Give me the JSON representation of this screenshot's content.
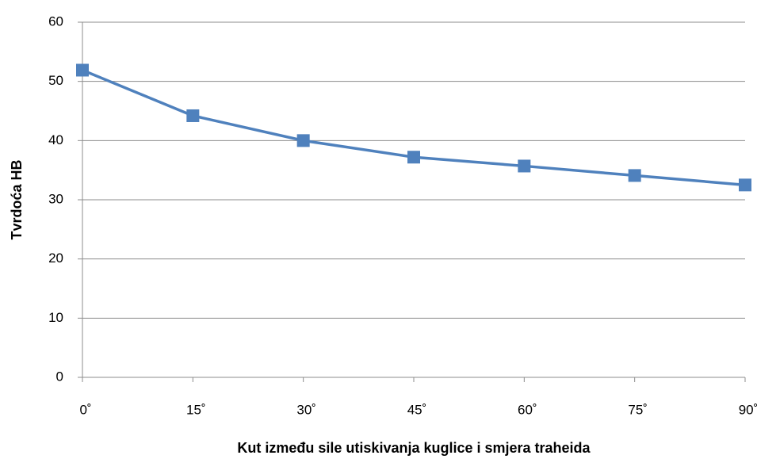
{
  "chart_data": {
    "type": "line",
    "x_label": "Kut između sile utiskivanja kuglice i smjera traheida",
    "y_label": "Tvrdoća HB",
    "categories": [
      "0˚",
      "15˚",
      "30˚",
      "45˚",
      "60˚",
      "75˚",
      "90˚"
    ],
    "series": [
      {
        "name": "Tvrdoća HB",
        "color": "#4f81bd",
        "values": [
          51.9,
          44.2,
          40,
          37.2,
          35.7,
          34.1,
          32.5
        ]
      }
    ],
    "ylim": [
      0,
      60
    ],
    "yticks": [
      0,
      10,
      20,
      30,
      40,
      50,
      60
    ],
    "grid": true
  }
}
